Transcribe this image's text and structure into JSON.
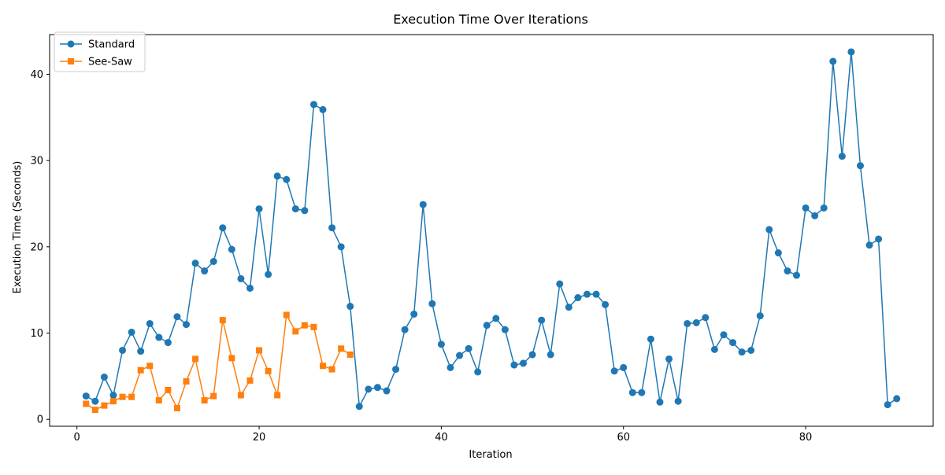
{
  "chart_data": {
    "type": "line",
    "title": "Execution Time Over Iterations",
    "xlabel": "Iteration",
    "ylabel": "Execution Time (Seconds)",
    "xlim": [
      -3,
      94
    ],
    "ylim": [
      -0.8,
      44.6
    ],
    "xticks": [
      0,
      20,
      40,
      60,
      80
    ],
    "yticks": [
      0,
      10,
      20,
      30,
      40
    ],
    "grid": false,
    "legend": "top-left",
    "series": [
      {
        "name": "Standard",
        "color": "#1f77b4",
        "marker": "circle",
        "x": [
          1,
          2,
          3,
          4,
          5,
          6,
          7,
          8,
          9,
          10,
          11,
          12,
          13,
          14,
          15,
          16,
          17,
          18,
          19,
          20,
          21,
          22,
          23,
          24,
          25,
          26,
          27,
          28,
          29,
          30,
          31,
          32,
          33,
          34,
          35,
          36,
          37,
          38,
          39,
          40,
          41,
          42,
          43,
          44,
          45,
          46,
          47,
          48,
          49,
          50,
          51,
          52,
          53,
          54,
          55,
          56,
          57,
          58,
          59,
          60,
          61,
          62,
          63,
          64,
          65,
          66,
          67,
          68,
          69,
          70,
          71,
          72,
          73,
          74,
          75,
          76,
          77,
          78,
          79,
          80,
          81,
          82,
          83,
          84,
          85,
          86,
          87,
          88,
          89,
          90
        ],
        "values": [
          2.7,
          2.1,
          4.9,
          2.8,
          8.0,
          10.1,
          7.9,
          11.1,
          9.5,
          8.9,
          11.9,
          11.0,
          18.1,
          17.2,
          18.3,
          22.2,
          19.7,
          16.3,
          15.2,
          24.4,
          16.8,
          28.2,
          27.8,
          24.4,
          24.2,
          36.5,
          35.9,
          22.2,
          20.0,
          13.1,
          1.5,
          3.5,
          3.7,
          3.3,
          5.8,
          10.4,
          12.2,
          24.9,
          13.4,
          8.7,
          6.0,
          7.4,
          8.2,
          5.5,
          10.9,
          11.7,
          10.4,
          6.3,
          6.5,
          7.5,
          11.5,
          7.5,
          15.7,
          13.0,
          14.1,
          14.5,
          14.5,
          13.3,
          5.6,
          6.0,
          3.1,
          3.1,
          9.3,
          2.0,
          7.0,
          2.1,
          11.1,
          11.2,
          11.8,
          8.1,
          9.8,
          8.9,
          7.8,
          8.0,
          12.0,
          22.0,
          19.3,
          17.2,
          16.7,
          24.5,
          23.6,
          24.5,
          41.5,
          30.5,
          42.6,
          29.4,
          20.2,
          20.9,
          1.7,
          2.4
        ]
      },
      {
        "name": "See-Saw",
        "color": "#ff7f0e",
        "marker": "square",
        "x": [
          1,
          2,
          3,
          4,
          5,
          6,
          7,
          8,
          9,
          10,
          11,
          12,
          13,
          14,
          15,
          16,
          17,
          18,
          19,
          20,
          21,
          22,
          23,
          24,
          25,
          26,
          27,
          28,
          29,
          30
        ],
        "values": [
          1.8,
          1.1,
          1.6,
          2.1,
          2.6,
          2.6,
          5.7,
          6.2,
          2.2,
          3.4,
          1.3,
          4.4,
          7.0,
          2.2,
          2.7,
          11.5,
          7.1,
          2.8,
          4.5,
          8.0,
          5.6,
          2.8,
          12.1,
          10.2,
          10.9,
          10.7,
          6.2,
          5.8,
          8.2,
          7.5
        ]
      }
    ]
  }
}
